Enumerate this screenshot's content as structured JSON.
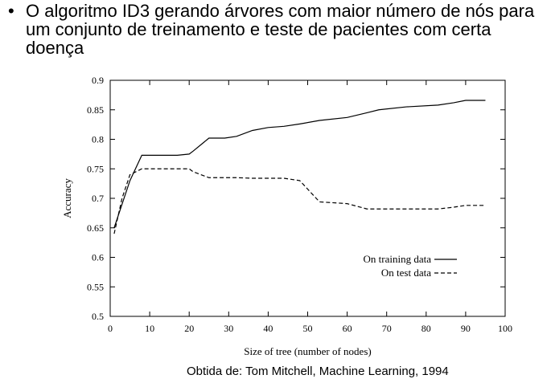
{
  "bullet": {
    "marker": "•",
    "text": "O algoritmo ID3 gerando árvores com maior número de nós para um conjunto de treinamento e teste de pacientes com certa doença"
  },
  "caption": "Obtida de: Tom Mitchell, Machine Learning, 1994",
  "chart_data": {
    "type": "line",
    "xlabel": "Size of tree (number of nodes)",
    "ylabel": "Accuracy",
    "xlim": [
      0,
      100
    ],
    "ylim": [
      0.5,
      0.9
    ],
    "xticks": [
      0,
      10,
      20,
      30,
      40,
      50,
      60,
      70,
      80,
      90,
      100
    ],
    "yticks": [
      0.5,
      0.55,
      0.6,
      0.65,
      0.7,
      0.75,
      0.8,
      0.85,
      0.9
    ],
    "legend_position": "lower-right",
    "series": [
      {
        "name": "On training data",
        "style": "solid",
        "x": [
          1,
          3,
          5,
          8,
          12,
          17,
          20,
          21,
          25,
          29,
          32,
          36,
          40,
          44,
          48,
          53,
          60,
          65,
          68,
          75,
          83,
          87,
          90,
          95
        ],
        "y": [
          0.65,
          0.69,
          0.73,
          0.773,
          0.773,
          0.773,
          0.775,
          0.78,
          0.802,
          0.802,
          0.805,
          0.815,
          0.82,
          0.822,
          0.826,
          0.832,
          0.837,
          0.845,
          0.85,
          0.855,
          0.858,
          0.862,
          0.866,
          0.866
        ]
      },
      {
        "name": "On test data",
        "style": "dashed",
        "x": [
          1,
          3,
          5,
          8,
          12,
          17,
          20,
          21,
          25,
          29,
          32,
          36,
          40,
          44,
          48,
          53,
          60,
          65,
          68,
          75,
          83,
          87,
          90,
          95
        ],
        "y": [
          0.64,
          0.7,
          0.74,
          0.75,
          0.75,
          0.75,
          0.75,
          0.745,
          0.735,
          0.735,
          0.735,
          0.734,
          0.734,
          0.734,
          0.73,
          0.694,
          0.691,
          0.682,
          0.682,
          0.682,
          0.682,
          0.685,
          0.688,
          0.688
        ]
      }
    ]
  }
}
